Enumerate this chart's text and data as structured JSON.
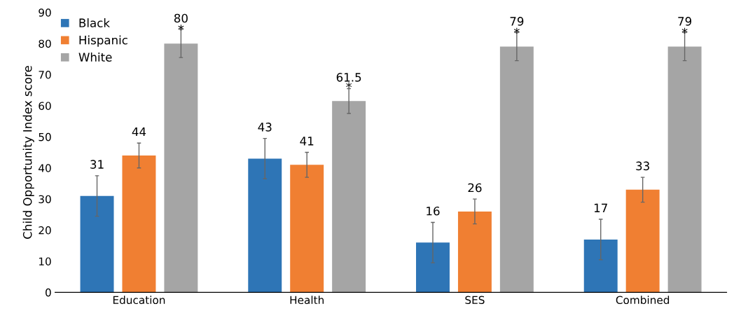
{
  "chart_data": {
    "type": "bar",
    "ylabel": "Child Opportunity Index score",
    "categories": [
      "Education",
      "Health",
      "SES",
      "Combined"
    ],
    "series": [
      {
        "name": "Black",
        "color": "#2e75b6",
        "values": [
          31,
          43,
          16,
          17
        ],
        "errors": [
          6.5,
          6.5,
          6.5,
          6.5
        ]
      },
      {
        "name": "Hispanic",
        "color": "#f07f32",
        "values": [
          44,
          41,
          26,
          33
        ],
        "errors": [
          4,
          4,
          4,
          4
        ]
      },
      {
        "name": "White",
        "color": "#a5a5a5",
        "values": [
          80,
          61.5,
          79,
          79
        ],
        "errors": [
          4.5,
          4,
          4.5,
          4.5
        ],
        "value_labels": [
          "80",
          "61.5",
          "79",
          "79"
        ]
      }
    ],
    "ylim": [
      0,
      90
    ],
    "yticks": [
      0,
      10,
      20,
      30,
      40,
      50,
      60,
      70,
      80,
      90
    ],
    "grid": false,
    "legend": "top left",
    "data_labels": true,
    "annotations": [
      "*",
      "*",
      "*",
      "*"
    ]
  }
}
